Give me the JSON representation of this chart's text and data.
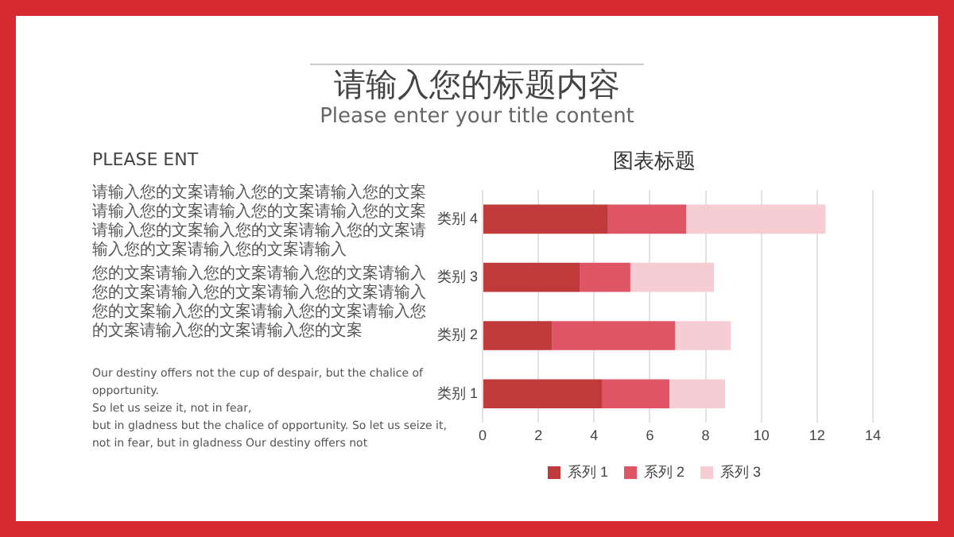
{
  "chart_data": {
    "type": "bar",
    "orientation": "horizontal",
    "stacked": true,
    "title": "图表标题",
    "categories": [
      "类别 4",
      "类别 3",
      "类别 2",
      "类别 1"
    ],
    "series": [
      {
        "name": "系列 1",
        "color": "#c0393b",
        "values": [
          4.5,
          3.5,
          2.5,
          4.3
        ]
      },
      {
        "name": "系列 2",
        "color": "#e05566",
        "values": [
          2.8,
          1.8,
          4.4,
          2.4
        ]
      },
      {
        "name": "系列 3",
        "color": "#f5cdd3",
        "values": [
          5,
          3,
          2,
          2
        ]
      }
    ],
    "xlim": [
      0,
      14
    ],
    "xticks": [
      0,
      2,
      4,
      6,
      8,
      10,
      12,
      14
    ],
    "grid": "x",
    "legend": "bottom",
    "annotations": [
      "请输入您的标题内容",
      "Please enter your title content",
      "PLEASE ENT",
      "请输入您的文案请输入您的文案请输入您的文案请输入您的文案请输入您的文案请输入您的文案请输入您的文案输入您的文案请输入您的文案请输入您的文案请输入您的文案请输入",
      "您的文案请输入您的文案请输入您的文案请输入您的文案请输入您的文案请输入您的文案请输入您的文案输入您的文案请输入您的文案请输入您的文案请输入您的文案请输入您的文案",
      "Our destiny offers not the cup of despair, but the chalice of opportunity.\nSo let us seize it, not in fear,\nbut in gladness but the chalice of opportunity. So let us seize it, not in fear, but in gladness Our destiny offers not"
    ]
  }
}
